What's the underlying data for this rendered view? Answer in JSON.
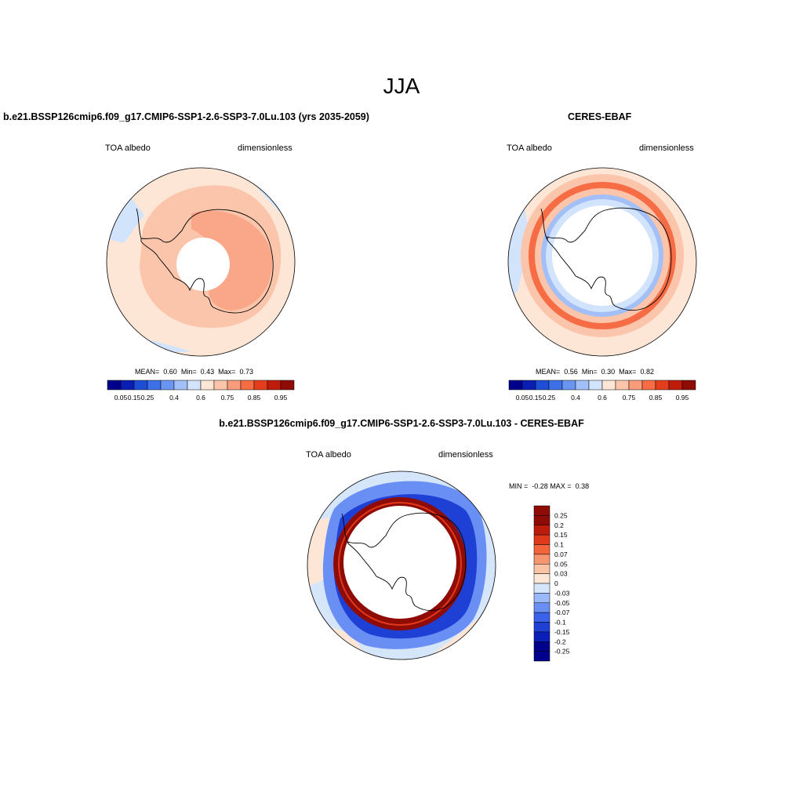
{
  "season": "JJA",
  "colors": {
    "cmap12": [
      "#00008c",
      "#0a1eb4",
      "#1f4ed6",
      "#3c71e8",
      "#6a96f2",
      "#a2bff8",
      "#d2e4fb",
      "#fde6d6",
      "#fbc5ab",
      "#f89c7c",
      "#f56c45",
      "#e43d1c",
      "#c01c0c",
      "#8f0b05"
    ],
    "diff14": [
      "#00008c",
      "#0b1eb7",
      "#1e40d4",
      "#3a62ea",
      "#6a8ff4",
      "#9bb8fa",
      "#d5e6fb",
      "#fde6d6",
      "#fbc3a6",
      "#f79571",
      "#f2653c",
      "#e1391b",
      "#bc1c0c",
      "#8f0b05"
    ],
    "coast": "#000000"
  },
  "panels": [
    {
      "id": "model",
      "title": "b.e21.BSSP126cmip6.f09_g17.CMIP6-SSP1-2.6-SSP3-7.0Lu.103 (yrs 2035-2059)",
      "left_label": "TOA albedo",
      "right_label": "dimensionless",
      "stats": {
        "mean_label": "MEAN=",
        "mean": "0.60",
        "min_label": "Min=",
        "min": "0.43",
        "max_label": "Max=",
        "max": "0.73"
      },
      "colorbar_ticks": [
        "0.05",
        "0.15",
        "0.25",
        "0.4",
        "0.6",
        "0.75",
        "0.85",
        "0.95"
      ]
    },
    {
      "id": "obs",
      "title": "CERES-EBAF",
      "left_label": "TOA albedo",
      "right_label": "dimensionless",
      "stats": {
        "mean_label": "MEAN=",
        "mean": "0.56",
        "min_label": "Min=",
        "min": "0.30",
        "max_label": "Max=",
        "max": "0.82"
      },
      "colorbar_ticks": [
        "0.05",
        "0.15",
        "0.25",
        "0.4",
        "0.6",
        "0.75",
        "0.85",
        "0.95"
      ]
    },
    {
      "id": "diff",
      "title": "b.e21.BSSP126cmip6.f09_g17.CMIP6-SSP1-2.6-SSP3-7.0Lu.103 - CERES-EBAF",
      "left_label": "TOA albedo",
      "right_label": "dimensionless",
      "stats": {
        "min_label": "MIN =",
        "min": "-0.28",
        "max_label": "MAX =",
        "max": "0.38"
      },
      "colorbar_ticks": [
        "0.25",
        "0.2",
        "0.15",
        "0.1",
        "0.07",
        "0.05",
        "0.03",
        "0",
        "-0.03",
        "-0.05",
        "-0.07",
        "-0.1",
        "-0.15",
        "-0.2",
        "-0.25"
      ]
    }
  ]
}
